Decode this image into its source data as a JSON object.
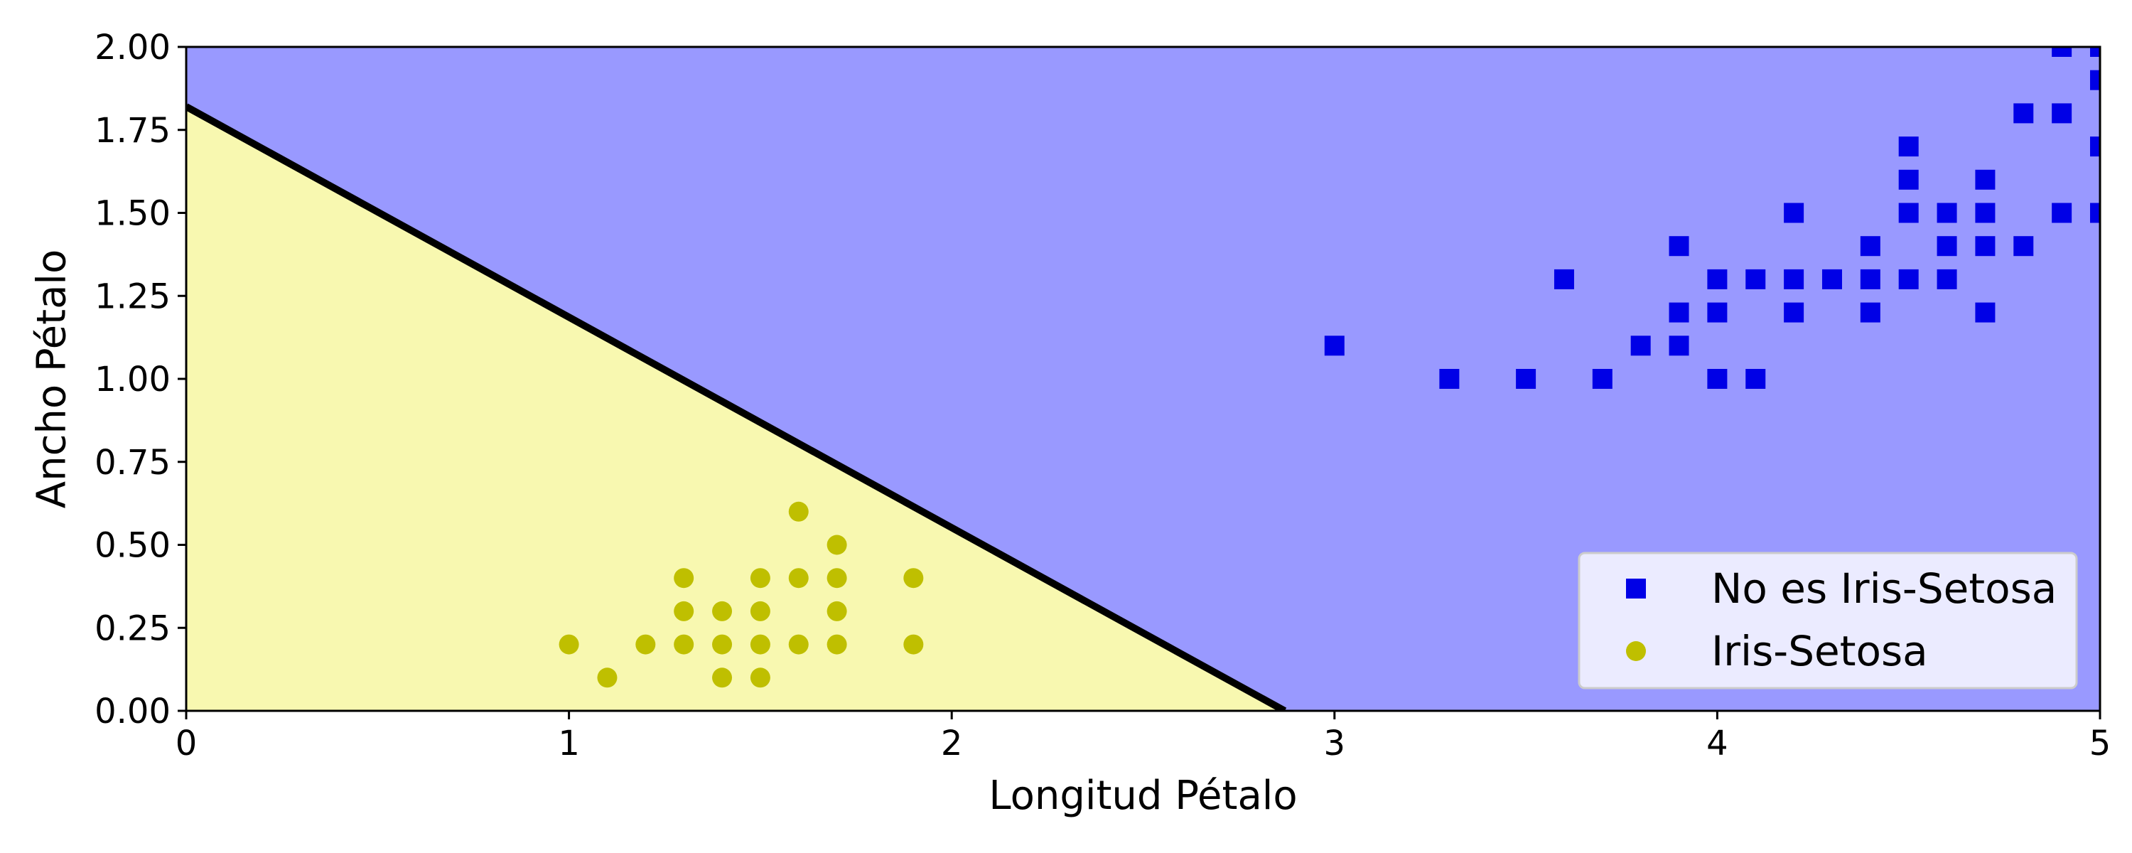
{
  "chart_data": {
    "type": "scatter",
    "title": "",
    "xlabel": "Longitud Pétalo",
    "ylabel": "Ancho Pétalo",
    "xlim": [
      0,
      5
    ],
    "ylim": [
      0,
      2
    ],
    "x_ticks": [
      "0",
      "1",
      "2",
      "3",
      "4",
      "5"
    ],
    "y_ticks": [
      "0.00",
      "0.25",
      "0.50",
      "0.75",
      "1.00",
      "1.25",
      "1.50",
      "1.75",
      "2.00"
    ],
    "grid": false,
    "legend_position": "bottom-right",
    "decision_boundary": {
      "points": [
        [
          0,
          1.82
        ],
        [
          2.87,
          0
        ]
      ],
      "color": "#000000"
    },
    "regions": [
      {
        "name": "No es Iris-Setosa",
        "color": "#9999ff"
      },
      {
        "name": "Iris-Setosa",
        "color": "#f8f8b0"
      }
    ],
    "series": [
      {
        "name": "No es Iris-Setosa",
        "marker": "square",
        "color": "#0000e6",
        "points": [
          [
            3.0,
            1.1
          ],
          [
            3.3,
            1.0
          ],
          [
            3.5,
            1.0
          ],
          [
            3.6,
            1.3
          ],
          [
            3.7,
            1.0
          ],
          [
            3.8,
            1.1
          ],
          [
            3.9,
            1.1
          ],
          [
            3.9,
            1.2
          ],
          [
            3.9,
            1.4
          ],
          [
            4.0,
            1.0
          ],
          [
            4.0,
            1.2
          ],
          [
            4.0,
            1.3
          ],
          [
            4.1,
            1.0
          ],
          [
            4.1,
            1.3
          ],
          [
            4.2,
            1.2
          ],
          [
            4.2,
            1.3
          ],
          [
            4.2,
            1.5
          ],
          [
            4.3,
            1.3
          ],
          [
            4.4,
            1.2
          ],
          [
            4.4,
            1.3
          ],
          [
            4.4,
            1.4
          ],
          [
            4.5,
            1.3
          ],
          [
            4.5,
            1.5
          ],
          [
            4.5,
            1.6
          ],
          [
            4.5,
            1.7
          ],
          [
            4.6,
            1.3
          ],
          [
            4.6,
            1.4
          ],
          [
            4.6,
            1.5
          ],
          [
            4.7,
            1.2
          ],
          [
            4.7,
            1.4
          ],
          [
            4.7,
            1.5
          ],
          [
            4.7,
            1.6
          ],
          [
            4.8,
            1.4
          ],
          [
            4.8,
            1.8
          ],
          [
            4.9,
            1.5
          ],
          [
            4.9,
            1.8
          ],
          [
            4.9,
            2.0
          ],
          [
            5.0,
            1.5
          ],
          [
            5.0,
            1.7
          ],
          [
            5.0,
            1.9
          ],
          [
            5.0,
            2.0
          ]
        ]
      },
      {
        "name": "Iris-Setosa",
        "marker": "circle",
        "color": "#bfbf00",
        "points": [
          [
            1.0,
            0.2
          ],
          [
            1.1,
            0.1
          ],
          [
            1.2,
            0.2
          ],
          [
            1.3,
            0.2
          ],
          [
            1.3,
            0.3
          ],
          [
            1.3,
            0.4
          ],
          [
            1.4,
            0.1
          ],
          [
            1.4,
            0.2
          ],
          [
            1.4,
            0.3
          ],
          [
            1.5,
            0.1
          ],
          [
            1.5,
            0.2
          ],
          [
            1.5,
            0.3
          ],
          [
            1.5,
            0.4
          ],
          [
            1.6,
            0.2
          ],
          [
            1.6,
            0.4
          ],
          [
            1.6,
            0.6
          ],
          [
            1.7,
            0.2
          ],
          [
            1.7,
            0.3
          ],
          [
            1.7,
            0.4
          ],
          [
            1.7,
            0.5
          ],
          [
            1.9,
            0.2
          ],
          [
            1.9,
            0.4
          ]
        ]
      }
    ]
  }
}
